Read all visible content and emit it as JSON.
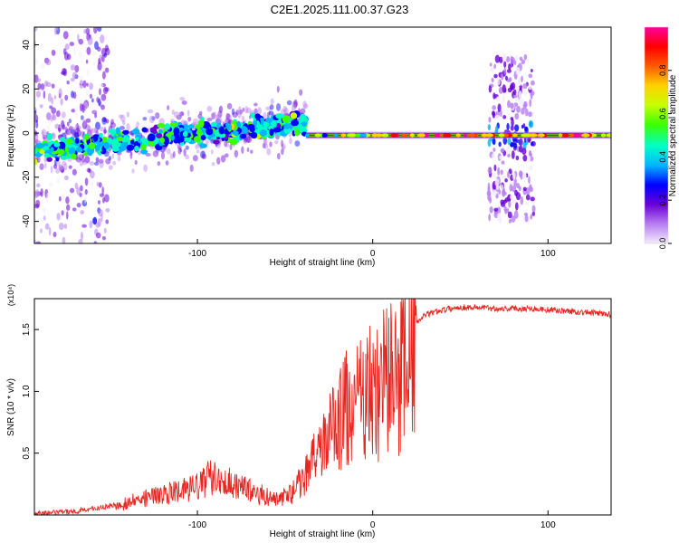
{
  "page_title": "C2E1.2025.111.00.37.G23",
  "chart_data": [
    {
      "type": "heatmap",
      "xlabel": "Height of straight line (km)",
      "ylabel": "Frequency (Hz)",
      "xlim": [
        -193,
        136
      ],
      "ylim": [
        -50,
        48
      ],
      "x_ticks": [
        -100,
        0,
        100
      ],
      "y_ticks": [
        -40,
        -20,
        0,
        20,
        40
      ],
      "grid": false,
      "colorbar": {
        "label": "Normalized spectral amplitude",
        "range": [
          0,
          1
        ],
        "ticks": [
          0.0,
          0.2,
          0.4,
          0.6,
          0.8
        ],
        "colors": [
          "#f4ecfc",
          "#b77ef0",
          "#6a00d8",
          "#0000ff",
          "#00b4ff",
          "#00ffc8",
          "#3cff00",
          "#c8ff00",
          "#ffd000",
          "#ff5a00",
          "#ff0000",
          "#ff00a0"
        ]
      },
      "regions": [
        {
          "description": "noisy low-amplitude scatter",
          "x_range": [
            -193,
            -150
          ],
          "y_range": [
            -50,
            48
          ]
        },
        {
          "description": "drifting energetic band",
          "x_start": -193,
          "x_end": -38,
          "center_freq_start": -8,
          "center_freq_end": 5
        },
        {
          "description": "steady line",
          "x_start": -38,
          "x_end": 136,
          "center_freq": -1
        },
        {
          "description": "broadband burst",
          "x_range": [
            66,
            92
          ],
          "y_range": [
            -40,
            35
          ]
        }
      ]
    },
    {
      "type": "line",
      "xlabel": "Height of straight line (km)",
      "ylabel": "SNR (10 * v/v)",
      "y_multiplier": "(x10⁴)",
      "xlim": [
        -193,
        136
      ],
      "ylim": [
        0,
        1.75
      ],
      "x_ticks": [
        -100,
        0,
        100
      ],
      "y_ticks": [
        0.5,
        1.0,
        1.5
      ],
      "grid": false,
      "series": [
        {
          "color": "#e8251f",
          "x": [
            -193,
            -180,
            -170,
            -160,
            -150,
            -140,
            -130,
            -120,
            -110,
            -100,
            -95,
            -90,
            -85,
            -80,
            -75,
            -70,
            -65,
            -60,
            -55,
            -50,
            -45,
            -40,
            -35,
            -30,
            -25,
            -20,
            -15,
            -10,
            -5,
            0,
            5,
            10,
            15,
            20,
            25,
            30,
            40,
            50,
            60,
            70,
            80,
            90,
            100,
            110,
            120,
            130,
            136
          ],
          "y": [
            0.01,
            0.02,
            0.03,
            0.05,
            0.07,
            0.1,
            0.15,
            0.18,
            0.2,
            0.25,
            0.3,
            0.35,
            0.28,
            0.27,
            0.25,
            0.2,
            0.18,
            0.15,
            0.13,
            0.15,
            0.2,
            0.3,
            0.45,
            0.55,
            0.7,
            0.8,
            0.9,
            0.95,
            1.0,
            1.05,
            1.1,
            1.15,
            1.25,
            1.4,
            1.55,
            1.62,
            1.66,
            1.68,
            1.68,
            1.67,
            1.67,
            1.67,
            1.66,
            1.65,
            1.64,
            1.63,
            1.62
          ]
        }
      ]
    }
  ]
}
